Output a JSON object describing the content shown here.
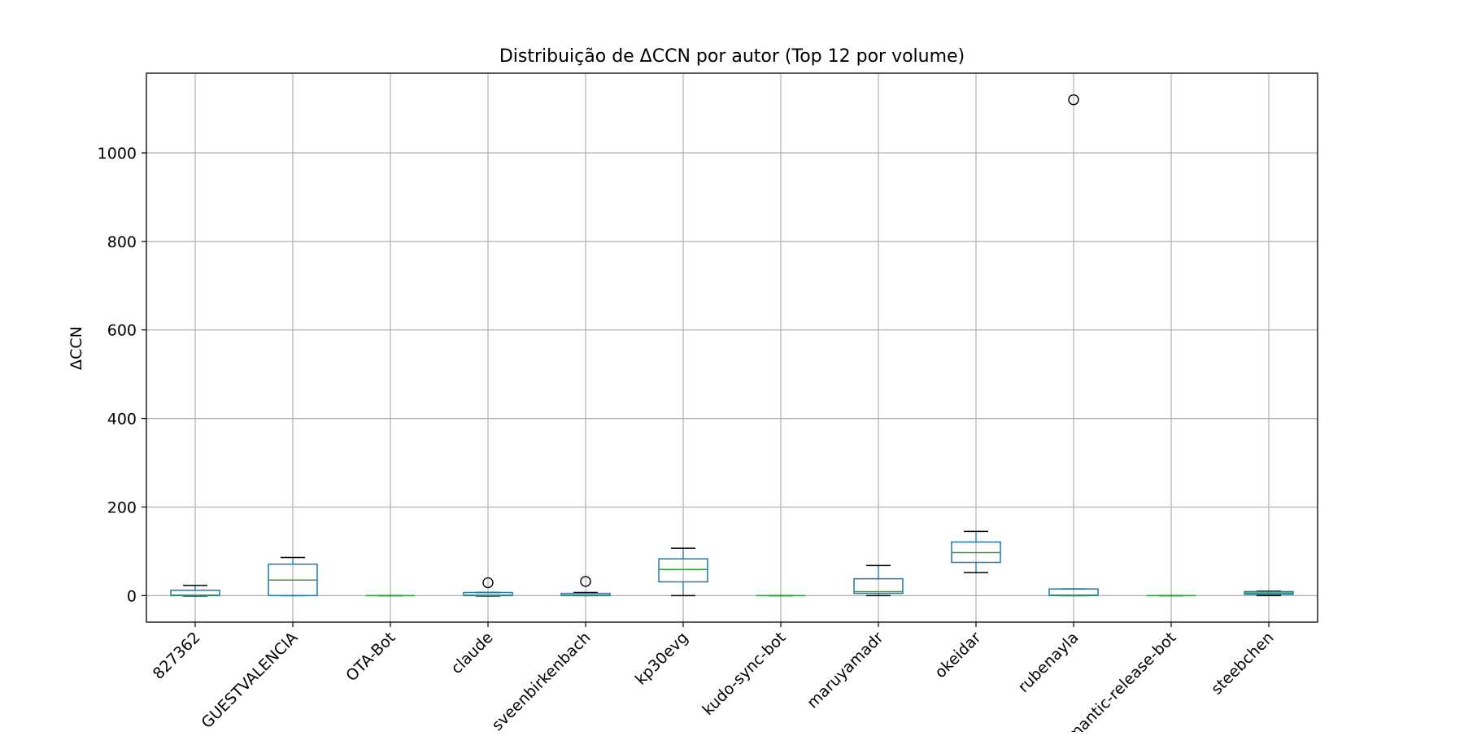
{
  "chart_data": {
    "type": "box",
    "title": "Distribuição de ΔCCN por autor (Top 12 por volume)",
    "xlabel": "",
    "ylabel": "ΔCCN",
    "ylim": [
      -60,
      1180
    ],
    "yticks": [
      0,
      200,
      400,
      600,
      800,
      1000
    ],
    "ytick_labels": [
      "0",
      "200",
      "400",
      "600",
      "800",
      "1000"
    ],
    "grid": true,
    "legend": "none",
    "x_tick_rotation": 45,
    "categories": [
      "827362",
      "GUESTVALENCIA",
      "OTA-Bot",
      "claude",
      "sveenbirkenbach",
      "kp30evg",
      "kudo-sync-bot",
      "maruyamadr",
      "okeidar",
      "rubenayla",
      "semantic-release-bot",
      "steebchen"
    ],
    "boxes": [
      {
        "whisker_low": -1,
        "q1": 0,
        "median": 1,
        "q3": 12,
        "whisker_high": 23,
        "outliers": []
      },
      {
        "whisker_low": 0,
        "q1": 0,
        "median": 35,
        "q3": 71,
        "whisker_high": 86,
        "outliers": []
      },
      {
        "whisker_low": 0,
        "q1": 0,
        "median": 0,
        "q3": 0,
        "whisker_high": 0,
        "outliers": []
      },
      {
        "whisker_low": -1,
        "q1": 0,
        "median": 1,
        "q3": 7,
        "whisker_high": 7,
        "outliers": [
          29
        ]
      },
      {
        "whisker_low": 0,
        "q1": 0,
        "median": 1,
        "q3": 5,
        "whisker_high": 7,
        "outliers": [
          32
        ]
      },
      {
        "whisker_low": 0,
        "q1": 31,
        "median": 59,
        "q3": 83,
        "whisker_high": 107,
        "outliers": []
      },
      {
        "whisker_low": 0,
        "q1": 0,
        "median": 0,
        "q3": 0,
        "whisker_high": 0,
        "outliers": []
      },
      {
        "whisker_low": 0,
        "q1": 5,
        "median": 9,
        "q3": 38,
        "whisker_high": 68,
        "outliers": []
      },
      {
        "whisker_low": 52,
        "q1": 75,
        "median": 97,
        "q3": 121,
        "whisker_high": 145,
        "outliers": []
      },
      {
        "whisker_low": 0,
        "q1": 0,
        "median": 1,
        "q3": 15,
        "whisker_high": 15,
        "outliers": [
          1120
        ]
      },
      {
        "whisker_low": 0,
        "q1": 0,
        "median": 0,
        "q3": 0,
        "whisker_high": 0,
        "outliers": []
      },
      {
        "whisker_low": 0,
        "q1": 3,
        "median": 6,
        "q3": 9,
        "whisker_high": 10,
        "outliers": []
      }
    ],
    "colors": {
      "box": "#1f77b4",
      "median": "#2ca02c",
      "whisker": "#000000",
      "grid": "#b0b0b0",
      "axes": "#000000"
    }
  }
}
